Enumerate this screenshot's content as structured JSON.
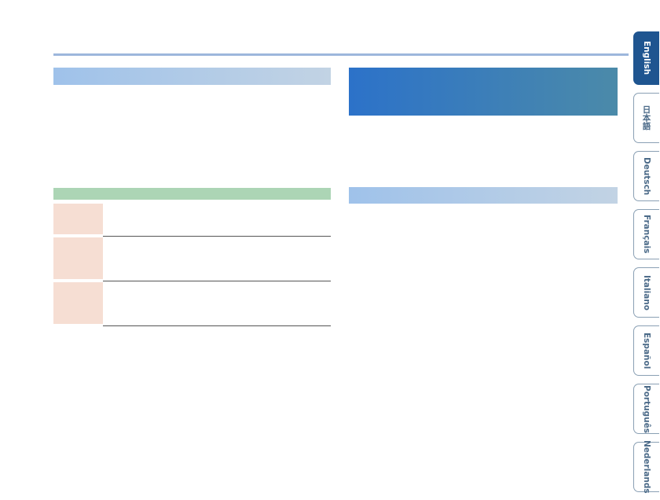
{
  "language_tabs": [
    "English",
    "日本語",
    "Deutsch",
    "Français",
    "Italiano",
    "Español",
    "Português",
    "Nederlands"
  ]
}
